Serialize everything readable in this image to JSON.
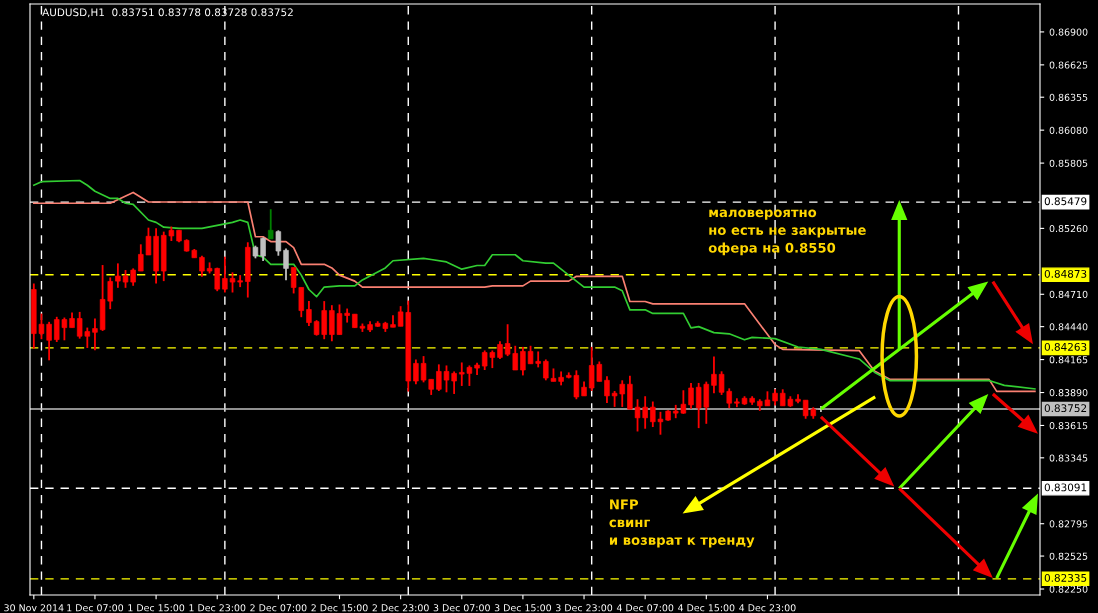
{
  "chart_data": {
    "type": "candlestick",
    "title": "AUDUSD,H1  0.83751 0.83778 0.83728 0.83752",
    "annotations": [
      "маловероятно\nно есть не закрытые\nофера на 0.8550",
      "NFP\nсвинг\nи возврат к тренду"
    ],
    "x": [
      "2014-11-30T23:00",
      "2014-12-01T00:00",
      "2014-12-01T01:00",
      "2014-12-01T02:00",
      "2014-12-01T03:00",
      "2014-12-01T04:00",
      "2014-12-01T05:00",
      "2014-12-01T06:00",
      "2014-12-01T07:00",
      "2014-12-01T08:00",
      "2014-12-01T09:00",
      "2014-12-01T10:00",
      "2014-12-01T11:00",
      "2014-12-01T12:00",
      "2014-12-01T13:00",
      "2014-12-01T14:00",
      "2014-12-01T15:00",
      "2014-12-01T16:00",
      "2014-12-01T17:00",
      "2014-12-01T18:00",
      "2014-12-01T19:00",
      "2014-12-01T20:00",
      "2014-12-01T21:00",
      "2014-12-01T22:00",
      "2014-12-01T23:00",
      "2014-12-02T00:00",
      "2014-12-02T01:00",
      "2014-12-02T02:00",
      "2014-12-02T03:00",
      "2014-12-02T04:00",
      "2014-12-02T05:00",
      "2014-12-02T06:00",
      "2014-12-02T07:00",
      "2014-12-02T08:00",
      "2014-12-02T09:00",
      "2014-12-02T10:00",
      "2014-12-02T11:00",
      "2014-12-02T12:00",
      "2014-12-02T13:00",
      "2014-12-02T14:00",
      "2014-12-02T15:00",
      "2014-12-02T16:00",
      "2014-12-02T17:00",
      "2014-12-02T18:00",
      "2014-12-02T19:00",
      "2014-12-02T20:00",
      "2014-12-02T21:00",
      "2014-12-02T22:00",
      "2014-12-02T23:00",
      "2014-12-03T00:00",
      "2014-12-03T01:00",
      "2014-12-03T02:00",
      "2014-12-03T03:00",
      "2014-12-03T04:00",
      "2014-12-03T05:00",
      "2014-12-03T06:00",
      "2014-12-03T07:00",
      "2014-12-03T08:00",
      "2014-12-03T09:00",
      "2014-12-03T10:00",
      "2014-12-03T11:00",
      "2014-12-03T12:00",
      "2014-12-03T13:00",
      "2014-12-03T14:00",
      "2014-12-03T15:00",
      "2014-12-03T16:00",
      "2014-12-03T17:00",
      "2014-12-03T18:00",
      "2014-12-03T19:00",
      "2014-12-03T20:00",
      "2014-12-03T21:00",
      "2014-12-03T22:00",
      "2014-12-03T23:00",
      "2014-12-04T00:00",
      "2014-12-04T01:00",
      "2014-12-04T02:00",
      "2014-12-04T03:00",
      "2014-12-04T04:00",
      "2014-12-04T05:00",
      "2014-12-04T06:00",
      "2014-12-04T07:00",
      "2014-12-04T08:00",
      "2014-12-04T09:00",
      "2014-12-04T10:00",
      "2014-12-04T11:00",
      "2014-12-04T12:00",
      "2014-12-04T13:00",
      "2014-12-04T14:00",
      "2014-12-04T15:00",
      "2014-12-04T16:00",
      "2014-12-04T17:00",
      "2014-12-04T18:00",
      "2014-12-04T19:00",
      "2014-12-04T20:00",
      "2014-12-04T21:00",
      "2014-12-04T22:00",
      "2014-12-04T23:00",
      "2014-12-05T00:00",
      "2014-12-05T01:00",
      "2014-12-05T02:00",
      "2014-12-05T03:00",
      "2014-12-05T04:00",
      "2014-12-05T05:00",
      "2014-12-05T06:00"
    ],
    "ohlc": [
      [
        0.8475,
        0.848,
        0.84256,
        0.84382
      ],
      [
        0.8446,
        0.84549,
        0.84335,
        0.84382
      ],
      [
        0.8446,
        0.8448,
        0.84159,
        0.84326
      ],
      [
        0.84499,
        0.84522,
        0.84312,
        0.84332
      ],
      [
        0.84499,
        0.84516,
        0.84326,
        0.84432
      ],
      [
        0.84508,
        0.84558,
        0.84432,
        0.84432
      ],
      [
        0.84508,
        0.84563,
        0.8434,
        0.8436
      ],
      [
        0.84399,
        0.84432,
        0.84262,
        0.8436
      ],
      [
        0.84424,
        0.84508,
        0.84243,
        0.84393
      ],
      [
        0.84667,
        0.84954,
        0.84404,
        0.84415
      ],
      [
        0.84817,
        0.84851,
        0.84586,
        0.84653
      ],
      [
        0.84862,
        0.84968,
        0.84764,
        0.8482
      ],
      [
        0.84862,
        0.84912,
        0.84764,
        0.84812
      ],
      [
        0.84912,
        0.84926,
        0.84781,
        0.84812
      ],
      [
        0.85043,
        0.85127,
        0.84904,
        0.84904
      ],
      [
        0.85194,
        0.85266,
        0.85038,
        0.85038
      ],
      [
        0.85194,
        0.85261,
        0.848,
        0.84904
      ],
      [
        0.85202,
        0.85233,
        0.8482,
        0.84904
      ],
      [
        0.85244,
        0.85275,
        0.85155,
        0.85197
      ],
      [
        0.85244,
        0.85244,
        0.85144,
        0.85155
      ],
      [
        0.8516,
        0.85169,
        0.85066,
        0.85071
      ],
      [
        0.85077,
        0.85088,
        0.85015,
        0.85015
      ],
      [
        0.85018,
        0.85032,
        0.84856,
        0.84904
      ],
      [
        0.84926,
        0.84976,
        0.84884,
        0.84904
      ],
      [
        0.84926,
        0.84932,
        0.84736,
        0.84753
      ],
      [
        0.84842,
        0.85024,
        0.84725,
        0.84753
      ],
      [
        0.84842,
        0.84893,
        0.84725,
        0.84812
      ],
      [
        0.84823,
        0.8487,
        0.8477,
        0.84812
      ],
      [
        0.85102,
        0.85144,
        0.84683,
        0.84817
      ],
      [
        0.85029,
        0.85116,
        0.8501,
        0.85102
      ],
      [
        0.85029,
        0.85183,
        0.84987,
        0.85177
      ],
      [
        0.85172,
        0.8542,
        0.85172,
        0.85244
      ],
      [
        0.85071,
        0.85244,
        0.85032,
        0.85233
      ],
      [
        0.84926,
        0.85093,
        0.84828,
        0.85077
      ],
      [
        0.84934,
        0.84934,
        0.84717,
        0.84767
      ],
      [
        0.84767,
        0.84767,
        0.84519,
        0.84574
      ],
      [
        0.84583,
        0.84653,
        0.84446,
        0.84474
      ],
      [
        0.84482,
        0.84494,
        0.84365,
        0.84374
      ],
      [
        0.84574,
        0.84653,
        0.84335,
        0.84374
      ],
      [
        0.84574,
        0.84619,
        0.84318,
        0.84374
      ],
      [
        0.84549,
        0.84625,
        0.84374,
        0.84374
      ],
      [
        0.84552,
        0.84591,
        0.84474,
        0.84533
      ],
      [
        0.84544,
        0.84544,
        0.8443,
        0.84432
      ],
      [
        0.84443,
        0.84466,
        0.84396,
        0.84427
      ],
      [
        0.84457,
        0.84485,
        0.84396,
        0.84413
      ],
      [
        0.84468,
        0.84485,
        0.84438,
        0.84443
      ],
      [
        0.84468,
        0.8448,
        0.84396,
        0.84424
      ],
      [
        0.84457,
        0.84535,
        0.84435,
        0.84435
      ],
      [
        0.84563,
        0.84611,
        0.84443,
        0.84443
      ],
      [
        0.84558,
        0.84658,
        0.83898,
        0.83986
      ],
      [
        0.84133,
        0.84166,
        0.83959,
        0.83986
      ],
      [
        0.84133,
        0.84194,
        0.83975,
        0.83994
      ],
      [
        0.84,
        0.84,
        0.8387,
        0.83917
      ],
      [
        0.84066,
        0.84125,
        0.83903,
        0.83917
      ],
      [
        0.84066,
        0.84116,
        0.83892,
        0.83994
      ],
      [
        0.8405,
        0.84066,
        0.83878,
        0.83986
      ],
      [
        0.84058,
        0.84141,
        0.83945,
        0.84044
      ],
      [
        0.841,
        0.84116,
        0.83945,
        0.8405
      ],
      [
        0.84119,
        0.84138,
        0.84036,
        0.84094
      ],
      [
        0.84224,
        0.84241,
        0.84078,
        0.84111
      ],
      [
        0.84224,
        0.84241,
        0.84094,
        0.84183
      ],
      [
        0.84291,
        0.84318,
        0.84169,
        0.84183
      ],
      [
        0.84299,
        0.8446,
        0.84194,
        0.8421
      ],
      [
        0.84216,
        0.8428,
        0.84078,
        0.84078
      ],
      [
        0.84233,
        0.84271,
        0.84033,
        0.84078
      ],
      [
        0.84233,
        0.8428,
        0.8413,
        0.8413
      ],
      [
        0.8415,
        0.84233,
        0.841,
        0.84133
      ],
      [
        0.8415,
        0.84166,
        0.83992,
        0.84011
      ],
      [
        0.84008,
        0.84091,
        0.83983,
        0.83983
      ],
      [
        0.84017,
        0.84066,
        0.8395,
        0.83983
      ],
      [
        0.84033,
        0.84058,
        0.84008,
        0.84017
      ],
      [
        0.84033,
        0.84075,
        0.83834,
        0.83853
      ],
      [
        0.83934,
        0.83983,
        0.83862,
        0.83862
      ],
      [
        0.84116,
        0.84271,
        0.83903,
        0.83928
      ],
      [
        0.84125,
        0.84149,
        0.83983,
        0.83983
      ],
      [
        0.83992,
        0.84025,
        0.83803,
        0.83862
      ],
      [
        0.83884,
        0.83903,
        0.8377,
        0.83862
      ],
      [
        0.83959,
        0.83992,
        0.8377,
        0.83878
      ],
      [
        0.83959,
        0.8403,
        0.83751,
        0.83751
      ],
      [
        0.83768,
        0.83834,
        0.83565,
        0.83679
      ],
      [
        0.83768,
        0.83859,
        0.83588,
        0.83679
      ],
      [
        0.83768,
        0.83815,
        0.83602,
        0.83646
      ],
      [
        0.83668,
        0.83729,
        0.83538,
        0.83646
      ],
      [
        0.83735,
        0.83743,
        0.83654,
        0.8366
      ],
      [
        0.83735,
        0.83787,
        0.83676,
        0.83718
      ],
      [
        0.83792,
        0.83909,
        0.83712,
        0.83718
      ],
      [
        0.83928,
        0.8397,
        0.83754,
        0.83787
      ],
      [
        0.83934,
        0.8397,
        0.83593,
        0.83762
      ],
      [
        0.83959,
        0.83981,
        0.83629,
        0.83768
      ],
      [
        0.84042,
        0.84191,
        0.83884,
        0.8395
      ],
      [
        0.84042,
        0.84067,
        0.8387,
        0.83892
      ],
      [
        0.839,
        0.83925,
        0.83759,
        0.83801
      ],
      [
        0.83812,
        0.83842,
        0.83768,
        0.83801
      ],
      [
        0.83842,
        0.83859,
        0.83787,
        0.83795
      ],
      [
        0.83842,
        0.83859,
        0.83787,
        0.83809
      ],
      [
        0.83817,
        0.83834,
        0.83737,
        0.83779
      ],
      [
        0.83828,
        0.839,
        0.83779,
        0.83779
      ],
      [
        0.83884,
        0.83917,
        0.83781,
        0.8382
      ],
      [
        0.83884,
        0.83917,
        0.83779,
        0.83779
      ],
      [
        0.83834,
        0.83859,
        0.8377,
        0.83779
      ],
      [
        0.83834,
        0.83875,
        0.83801,
        0.83817
      ],
      [
        0.83826,
        0.83826,
        0.83671,
        0.83696
      ],
      [
        0.83751,
        0.83767,
        0.83671,
        0.83696
      ],
      [
        0.83751,
        0.83778,
        0.83728,
        0.83752
      ]
    ],
    "colors": [
      "#ff0000",
      "#ff0000",
      "#ff0000",
      "#ff0000",
      "#ff0000",
      "#ff0000",
      "#ff0000",
      "#ff0000",
      "#ff0000",
      "#ff0000",
      "#ff0000",
      "#ff0000",
      "#ff0000",
      "#ff0000",
      "#ff0000",
      "#ff0000",
      "#ff0000",
      "#ff0000",
      "#ff0000",
      "#ff0000",
      "#ff0000",
      "#ff0000",
      "#ff0000",
      "#ff0000",
      "#ff0000",
      "#ff0000",
      "#ff0000",
      "#ff0000",
      "#ff0000",
      "#c0c0c0",
      "#c0c0c0",
      "#008000",
      "#c0c0c0",
      "#c0c0c0",
      "#ff0000",
      "#ff0000",
      "#ff0000",
      "#ff0000",
      "#ff0000",
      "#ff0000",
      "#ff0000",
      "#ff0000",
      "#ff0000",
      "#ff0000",
      "#ff0000",
      "#ff0000",
      "#ff0000",
      "#ff0000",
      "#ff0000",
      "#ff0000",
      "#ff0000",
      "#ff0000",
      "#ff0000",
      "#ff0000",
      "#ff0000",
      "#ff0000",
      "#ff0000",
      "#ff0000",
      "#ff0000",
      "#ff0000",
      "#ff0000",
      "#ff0000",
      "#ff0000",
      "#ff0000",
      "#ff0000",
      "#ff0000",
      "#ff0000",
      "#ff0000",
      "#ff0000",
      "#ff0000",
      "#ff0000",
      "#ff0000",
      "#ff0000",
      "#ff0000",
      "#ff0000",
      "#ff0000",
      "#ff0000",
      "#ff0000",
      "#ff0000",
      "#ff0000",
      "#ff0000",
      "#ff0000",
      "#ff0000",
      "#ff0000",
      "#ff0000",
      "#ff0000",
      "#ff0000",
      "#ff0000",
      "#ff0000",
      "#ff0000",
      "#ff0000",
      "#ff0000",
      "#ff0000",
      "#ff0000",
      "#ff0000",
      "#ff0000",
      "#ff0000",
      "#ff0000",
      "#ff0000",
      "#ff0000",
      "#ff0000",
      "#ff0000",
      "#ff0000",
      "#c0c0c0"
    ],
    "series": [
      {
        "type": "line",
        "color": "#fa8072",
        "x": [
          "2014-11-30T23:00",
          "2014-12-01T09:00",
          "2014-12-01T12:00",
          "2014-12-01T14:00",
          "2014-12-02T03:00",
          "2014-12-02T04:00",
          "2014-12-02T05:00",
          "2014-12-02T06:00",
          "2014-12-02T08:00",
          "2014-12-02T09:00",
          "2014-12-02T10:00",
          "2014-12-02T13:00",
          "2014-12-02T14:00",
          "2014-12-02T15:00",
          "2014-12-02T17:00",
          "2014-12-02T18:00",
          "2014-12-03T10:00",
          "2014-12-03T11:00",
          "2014-12-03T15:00",
          "2014-12-03T16:00",
          "2014-12-03T21:00",
          "2014-12-03T22:00",
          "2014-12-04T04:00",
          "2014-12-04T05:00",
          "2014-12-04T07:00",
          "2014-12-04T08:00",
          "2014-12-04T20:00",
          "2014-12-05T00:00",
          "2014-12-05T01:00",
          "2014-12-05T11:00",
          "2014-12-05T13:00",
          "2014-12-05T15:00",
          "2014-12-06T04:00",
          "2014-12-06T05:00",
          "2014-12-06T10:00"
        ],
        "values": [
          0.8547,
          0.8547,
          0.8556,
          0.8548,
          0.8548,
          0.8519,
          0.8519,
          0.8515,
          0.8515,
          0.851,
          0.8496,
          0.8496,
          0.8493,
          0.8487,
          0.8482,
          0.8477,
          0.8477,
          0.8478,
          0.8478,
          0.8482,
          0.8482,
          0.8486,
          0.8486,
          0.8465,
          0.8465,
          0.8463,
          0.8463,
          0.8429,
          0.8425,
          0.8424,
          0.8407,
          0.84,
          0.84,
          0.839,
          0.839
        ]
      },
      {
        "type": "line",
        "color": "#32cd32",
        "x": [
          "2014-11-30T23:00",
          "2014-12-01T00:00",
          "2014-12-01T05:00",
          "2014-12-01T06:00",
          "2014-12-01T07:00",
          "2014-12-01T09:00",
          "2014-12-01T10:00",
          "2014-12-01T11:00",
          "2014-12-01T12:00",
          "2014-12-01T14:00",
          "2014-12-01T15:00",
          "2014-12-01T16:00",
          "2014-12-01T18:00",
          "2014-12-01T21:00",
          "2014-12-02T01:00",
          "2014-12-02T02:00",
          "2014-12-02T03:00",
          "2014-12-02T04:00",
          "2014-12-02T05:00",
          "2014-12-02T06:00",
          "2014-12-02T09:00",
          "2014-12-02T10:00",
          "2014-12-02T11:00",
          "2014-12-02T12:00",
          "2014-12-02T13:00",
          "2014-12-02T15:00",
          "2014-12-02T17:00",
          "2014-12-02T18:00",
          "2014-12-02T21:00",
          "2014-12-02T22:00",
          "2014-12-03T02:00",
          "2014-12-03T03:00",
          "2014-12-03T05:00",
          "2014-12-03T07:00",
          "2014-12-03T09:00",
          "2014-12-03T10:00",
          "2014-12-03T11:00",
          "2014-12-03T14:00",
          "2014-12-03T15:00",
          "2014-12-03T18:00",
          "2014-12-03T19:00",
          "2014-12-03T21:00",
          "2014-12-03T23:00",
          "2014-12-04T03:00",
          "2014-12-04T04:00",
          "2014-12-04T05:00",
          "2014-12-04T07:00",
          "2014-12-04T08:00",
          "2014-12-04T12:00",
          "2014-12-04T13:00",
          "2014-12-04T14:00",
          "2014-12-04T16:00",
          "2014-12-04T18:00",
          "2014-12-04T20:00",
          "2014-12-04T21:00",
          "2014-12-05T00:00",
          "2014-12-05T03:00",
          "2014-12-05T06:00",
          "2014-12-05T11:00",
          "2014-12-05T13:00",
          "2014-12-05T15:00",
          "2014-12-06T04:00",
          "2014-12-06T06:00",
          "2014-12-06T10:00"
        ],
        "values": [
          0.8562,
          0.8565,
          0.8566,
          0.8562,
          0.8557,
          0.8551,
          0.8551,
          0.8547,
          0.8546,
          0.8533,
          0.8531,
          0.8527,
          0.8526,
          0.8526,
          0.8531,
          0.8533,
          0.8531,
          0.8504,
          0.8502,
          0.8496,
          0.8496,
          0.8487,
          0.8475,
          0.8469,
          0.8477,
          0.8478,
          0.8478,
          0.8483,
          0.8493,
          0.8499,
          0.8501,
          0.85,
          0.8498,
          0.8492,
          0.8495,
          0.8495,
          0.8504,
          0.8504,
          0.8499,
          0.8497,
          0.8497,
          0.8487,
          0.8477,
          0.8477,
          0.8474,
          0.8458,
          0.8458,
          0.8455,
          0.8455,
          0.8443,
          0.8444,
          0.8439,
          0.8438,
          0.8433,
          0.8435,
          0.8434,
          0.8427,
          0.8425,
          0.8417,
          0.8406,
          0.8399,
          0.8399,
          0.8395,
          0.8392
        ]
      }
    ],
    "ref_lines": [
      {
        "axis": "y",
        "value": 0.85479,
        "label": "0.85479",
        "color": "#ffffff",
        "line_style": "dashed"
      },
      {
        "axis": "y",
        "value": 0.84873,
        "label": "0.84873",
        "color": "#ffff00",
        "line_style": "dashed"
      },
      {
        "axis": "y",
        "value": 0.84263,
        "label": "0.84263",
        "color": "#ffff00",
        "line_style": "dashed"
      },
      {
        "axis": "y",
        "value": 0.83752,
        "label": "0.83752",
        "color": "#c0c0c0",
        "line_style": "solid"
      },
      {
        "axis": "y",
        "value": 0.83091,
        "label": "0.83091",
        "color": "#ffffff",
        "line_style": "dashed"
      },
      {
        "axis": "y",
        "value": 0.82335,
        "label": "0.82335",
        "color": "#ffff00",
        "line_style": "dashed"
      },
      {
        "axis": "x",
        "value": "2014-12-01T00:00",
        "color": "#ffffff",
        "line_style": "dashed"
      },
      {
        "axis": "x",
        "value": "2014-12-02T00:00",
        "color": "#ffffff",
        "line_style": "dashed"
      },
      {
        "axis": "x",
        "value": "2014-12-03T00:00",
        "color": "#ffffff",
        "line_style": "dashed"
      },
      {
        "axis": "x",
        "value": "2014-12-04T00:00",
        "color": "#ffffff",
        "line_style": "dashed"
      },
      {
        "axis": "x",
        "value": "2014-12-05T00:00",
        "color": "#ffffff",
        "line_style": "dashed"
      },
      {
        "axis": "x",
        "value": "2014-12-06T00:00",
        "color": "#ffffff",
        "line_style": "dashed"
      }
    ],
    "xlim": [
      "2014-11-30T22:30",
      "2014-12-06T10:40"
    ],
    "xticks": [
      {
        "value": "2014-11-30T23:00",
        "label": "30 Nov 2014"
      },
      {
        "value": "2014-12-01T07:00",
        "label": "1 Dec 07:00"
      },
      {
        "value": "2014-12-01T15:00",
        "label": "1 Dec 15:00"
      },
      {
        "value": "2014-12-01T23:00",
        "label": "1 Dec 23:00"
      },
      {
        "value": "2014-12-02T07:00",
        "label": "2 Dec 07:00"
      },
      {
        "value": "2014-12-02T15:00",
        "label": "2 Dec 15:00"
      },
      {
        "value": "2014-12-02T23:00",
        "label": "2 Dec 23:00"
      },
      {
        "value": "2014-12-03T07:00",
        "label": "3 Dec 07:00"
      },
      {
        "value": "2014-12-03T15:00",
        "label": "3 Dec 15:00"
      },
      {
        "value": "2014-12-03T23:00",
        "label": "3 Dec 23:00"
      },
      {
        "value": "2014-12-04T07:00",
        "label": "4 Dec 07:00"
      },
      {
        "value": "2014-12-04T15:00",
        "label": "4 Dec 15:00"
      },
      {
        "value": "2014-12-04T23:00",
        "label": "4 Dec 23:00"
      }
    ],
    "ylim": [
      0.822,
      0.87133
    ],
    "yticks": [
      {
        "value": 0.869,
        "label": "0.86900"
      },
      {
        "value": 0.86625,
        "label": "0.86625"
      },
      {
        "value": 0.86355,
        "label": "0.86355"
      },
      {
        "value": 0.8608,
        "label": "0.86080"
      },
      {
        "value": 0.85805,
        "label": "0.85805"
      },
      {
        "value": 0.8526,
        "label": "0.85260"
      },
      {
        "value": 0.8471,
        "label": "0.84710"
      },
      {
        "value": 0.8444,
        "label": "0.84440"
      },
      {
        "value": 0.84165,
        "label": "0.84165"
      },
      {
        "value": 0.8389,
        "label": "0.83890"
      },
      {
        "value": 0.83615,
        "label": "0.83615"
      },
      {
        "value": 0.83345,
        "label": "0.83345"
      },
      {
        "value": 0.82795,
        "label": "0.82795"
      },
      {
        "value": 0.82525,
        "label": "0.82525"
      },
      {
        "value": 0.8225,
        "label": "0.82250"
      }
    ]
  }
}
